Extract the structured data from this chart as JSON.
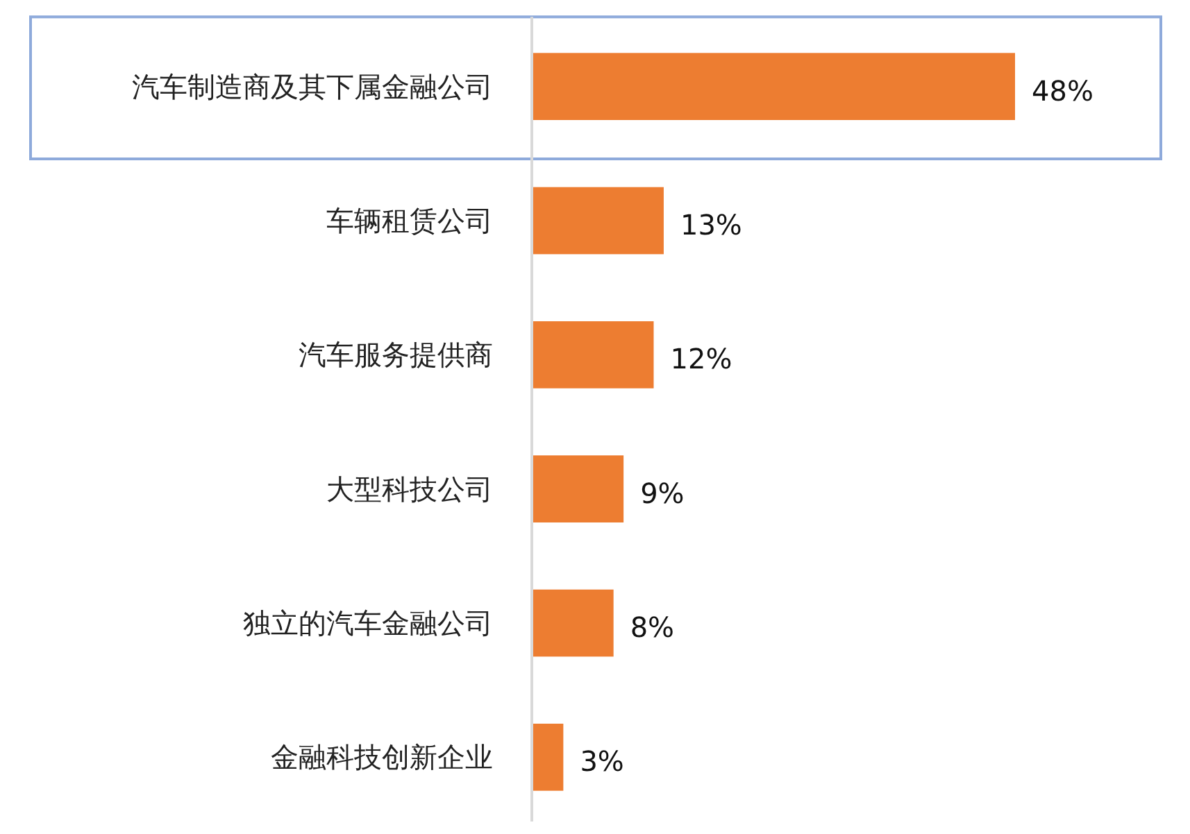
{
  "chart_data": {
    "type": "bar",
    "orientation": "horizontal",
    "categories": [
      "汽车制造商及其下属金融公司",
      "车辆租赁公司",
      "汽车服务提供商",
      "大型科技公司",
      "独立的汽车金融公司",
      "金融科技创新企业"
    ],
    "values": [
      48,
      13,
      12,
      9,
      8,
      3
    ],
    "color": "#ed7d31",
    "value_labels": [
      "48%",
      "13%",
      "12%",
      "9%",
      "8%",
      "3%"
    ]
  }
}
